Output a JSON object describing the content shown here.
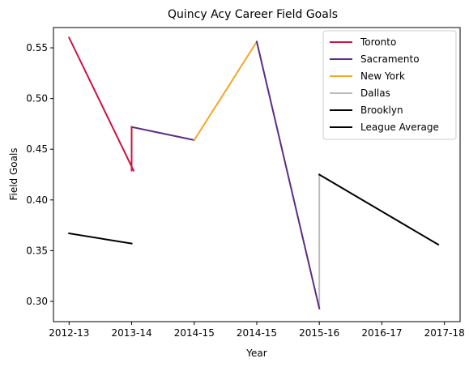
{
  "chart_data": {
    "type": "line",
    "title": "Quincy Acy Career Field Goals",
    "xlabel": "Year",
    "ylabel": "Field Goals",
    "x_categories": [
      "2012-13",
      "2013-14",
      "2014-15",
      "2014-15",
      "2015-16",
      "2016-17",
      "2017-18"
    ],
    "xlim": [
      -0.25,
      6.25
    ],
    "ylim": [
      0.28,
      0.57
    ],
    "yticks": [
      "0.30",
      "0.35",
      "0.40",
      "0.45",
      "0.50",
      "0.55"
    ],
    "grid": false,
    "legend_position": "top-right",
    "series": [
      {
        "name": "Toronto",
        "color": "#ce1141",
        "points": [
          [
            0,
            0.56
          ],
          [
            1.03,
            0.429
          ]
        ]
      },
      {
        "name": "Sacramento",
        "color": "#5a2d81",
        "points": [
          [
            1.0,
            0.472
          ],
          [
            2.0,
            0.459
          ]
        ]
      },
      {
        "name": "New York",
        "color": "#f5a623",
        "points": [
          [
            2.0,
            0.459
          ],
          [
            3.0,
            0.556
          ]
        ]
      },
      {
        "name": "Dallas",
        "color": "#bbbbbb",
        "points": [
          [
            4.0,
            0.425
          ],
          [
            4.0,
            0.293
          ]
        ]
      },
      {
        "name": "Brooklyn",
        "color": "#000000",
        "points": [
          [
            4.0,
            0.425
          ],
          [
            5.9,
            0.356
          ]
        ]
      },
      {
        "name": "League Average",
        "color": "#000000",
        "points": [
          [
            0,
            0.367
          ],
          [
            1.0,
            0.357
          ]
        ]
      }
    ],
    "extra_segments": [
      {
        "series": "Toronto",
        "color": "#ce1141",
        "points": [
          [
            1.0,
            0.429
          ],
          [
            1.0,
            0.472
          ]
        ]
      },
      {
        "series": "Sacramento",
        "color": "#5a2d81",
        "points": [
          [
            3.0,
            0.556
          ],
          [
            4.0,
            0.293
          ]
        ]
      }
    ]
  }
}
